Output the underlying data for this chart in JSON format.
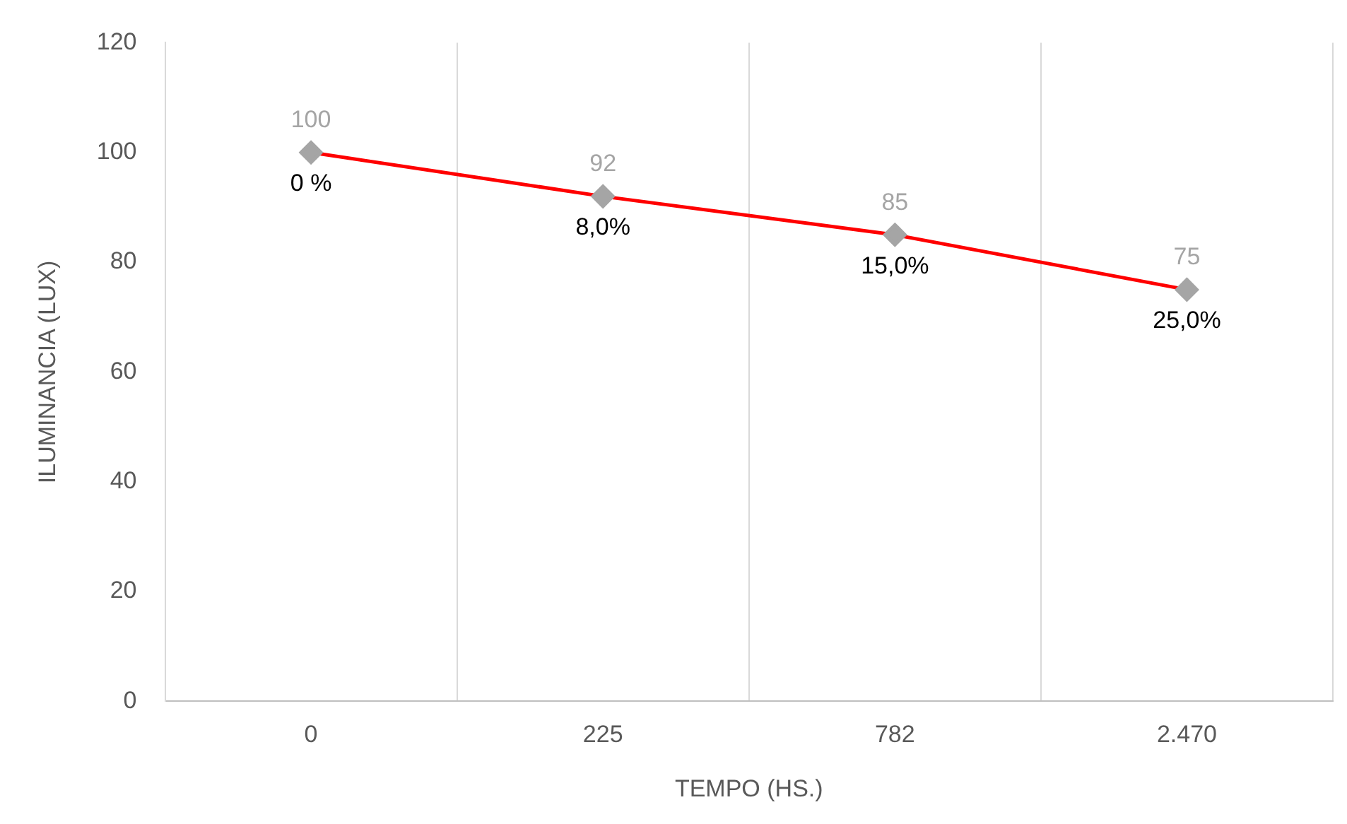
{
  "chart_data": {
    "type": "line",
    "xlabel": "TEMPO (HS.)",
    "ylabel": "ILUMINANCIA (LUX)",
    "categories": [
      "0",
      "225",
      "782",
      "2.470"
    ],
    "series": [
      {
        "color": "#ff0000",
        "colors": [
          "#a5a5a5",
          "#a5a5a5",
          "#a5a5a5",
          "#a5a5a5"
        ],
        "values": [
          100,
          92,
          85,
          75
        ]
      }
    ],
    "ylim": [
      0,
      120
    ],
    "yticks": [
      0,
      20,
      40,
      60,
      80,
      100,
      120
    ],
    "grid": "x",
    "legend": false,
    "marker": "diamond",
    "line_style": "solid",
    "data_labels": true,
    "annotations": [
      {
        "text": "0 %",
        "x": "0",
        "y": 100
      },
      {
        "text": "8,0%",
        "x": "225",
        "y": 92
      },
      {
        "text": "15,0%",
        "x": "782",
        "y": 85
      },
      {
        "text": "25,0%",
        "x": "2.470",
        "y": 75
      }
    ]
  }
}
